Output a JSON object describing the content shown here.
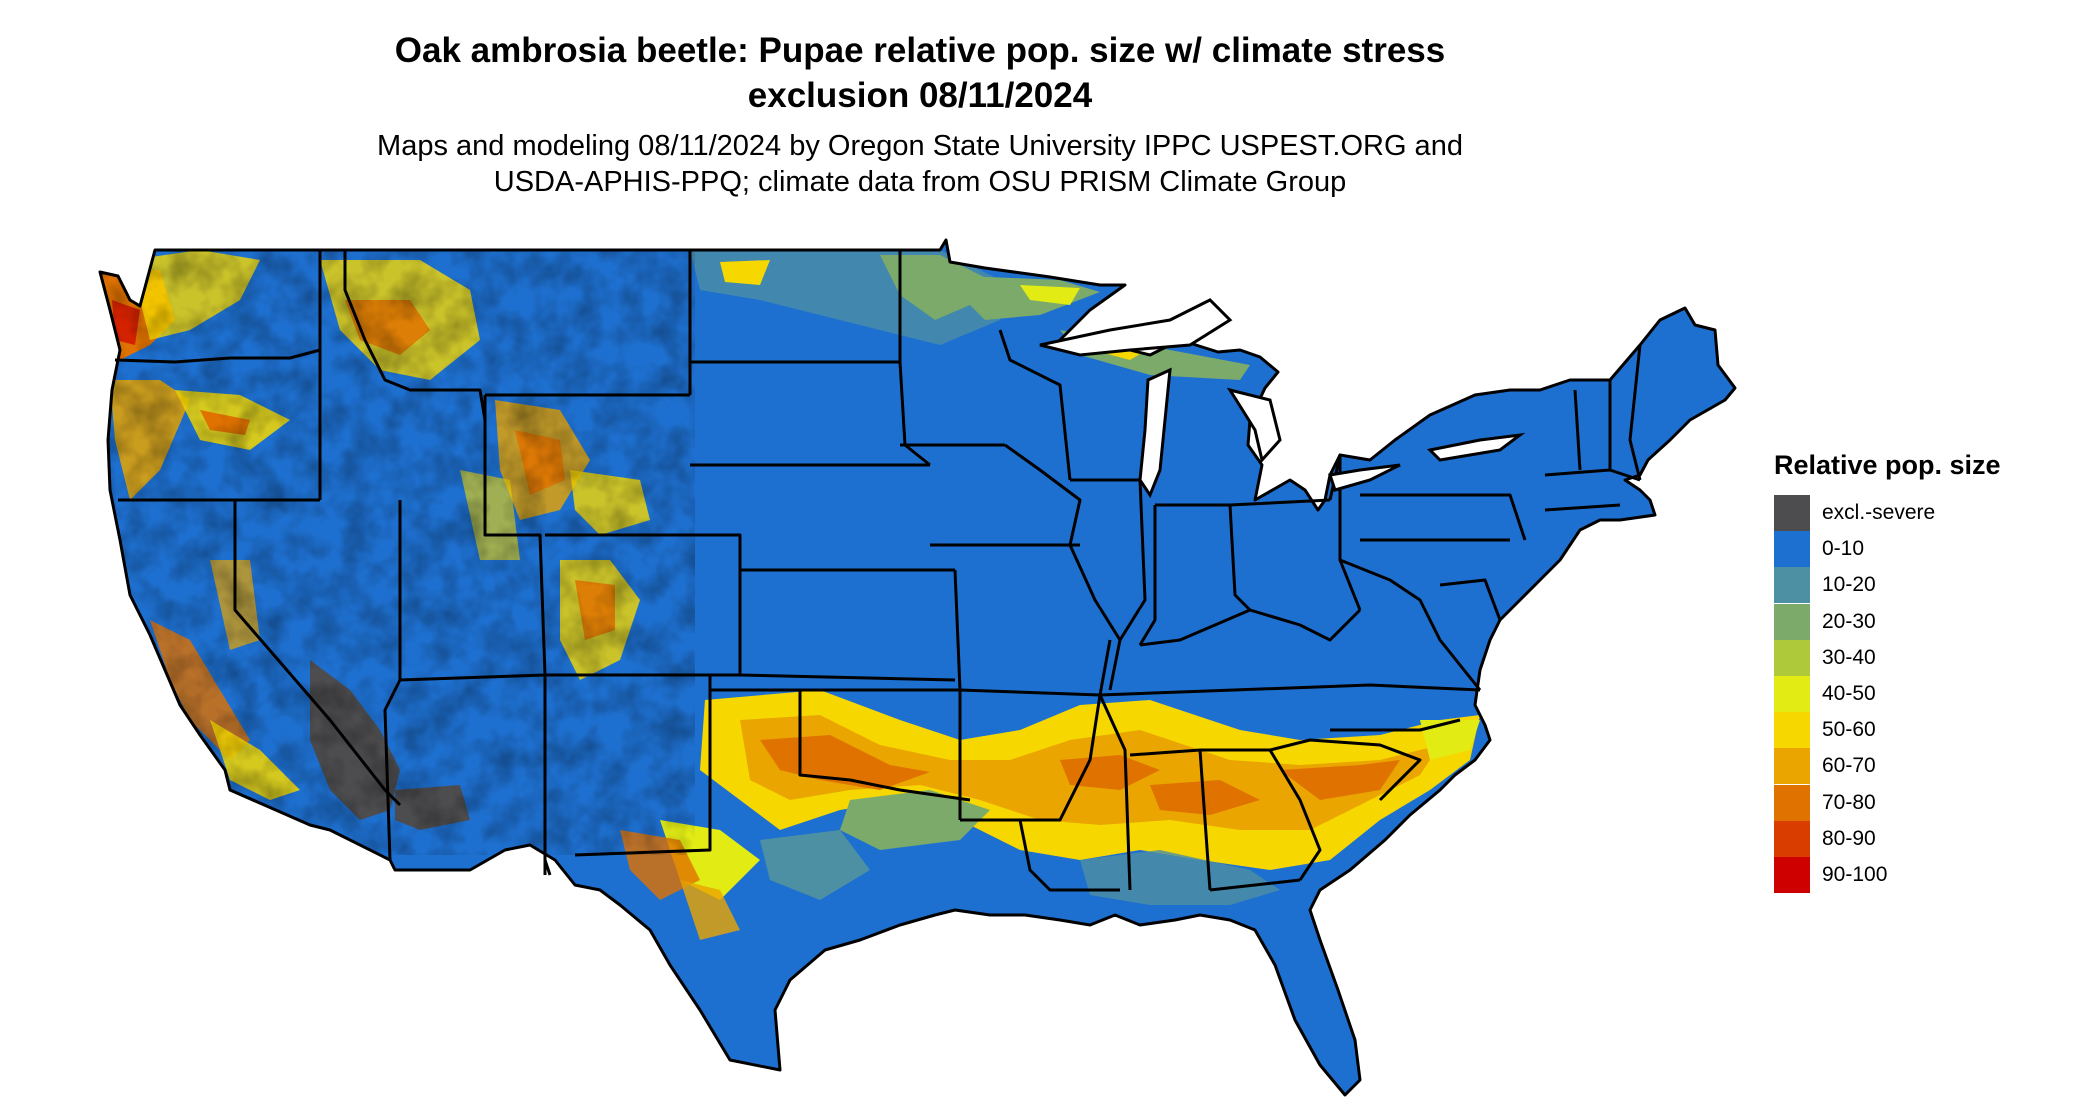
{
  "header": {
    "title_line1": "Oak ambrosia beetle: Pupae relative pop. size w/ climate stress",
    "title_line2": "exclusion 08/11/2024",
    "subtitle_line1": "Maps and modeling 08/11/2024 by Oregon State University IPPC USPEST.ORG and",
    "subtitle_line2": "USDA-APHIS-PPQ; climate data from OSU PRISM Climate Group"
  },
  "legend": {
    "title": "Relative pop. size",
    "items": [
      {
        "label": "excl.-severe",
        "color": "#4d4d4f"
      },
      {
        "label": "0-10",
        "color": "#1e70d0"
      },
      {
        "label": "10-20",
        "color": "#4d8fa3"
      },
      {
        "label": "20-30",
        "color": "#7baa6b"
      },
      {
        "label": "30-40",
        "color": "#aec93a"
      },
      {
        "label": "40-50",
        "color": "#e2ec14"
      },
      {
        "label": "50-60",
        "color": "#f6d800"
      },
      {
        "label": "60-70",
        "color": "#eaa500"
      },
      {
        "label": "70-80",
        "color": "#e07200"
      },
      {
        "label": "80-90",
        "color": "#d93d00"
      },
      {
        "label": "90-100",
        "color": "#cf0000"
      }
    ]
  }
}
